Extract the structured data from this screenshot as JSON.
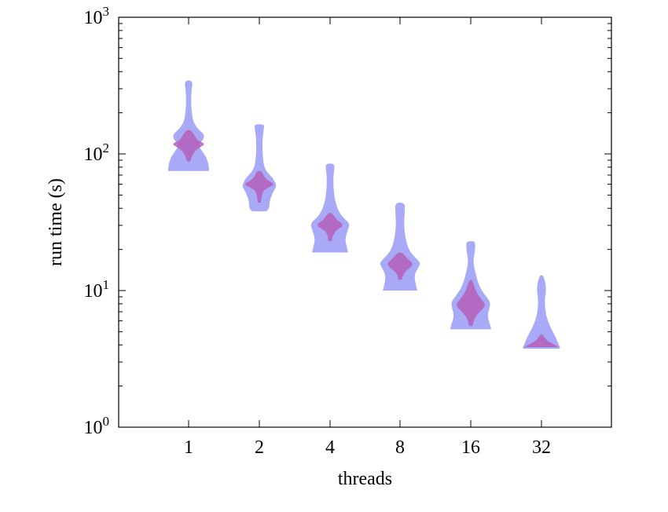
{
  "chart_data": {
    "type": "violin",
    "xlabel": "threads",
    "ylabel": "run time (s)",
    "yscale": "log",
    "ylim": [
      1,
      1000
    ],
    "categories": [
      "1",
      "2",
      "4",
      "8",
      "16",
      "32"
    ],
    "y_ticks": [
      {
        "base": "10",
        "exp": "0",
        "value": 1
      },
      {
        "base": "10",
        "exp": "1",
        "value": 10
      },
      {
        "base": "10",
        "exp": "2",
        "value": 100
      },
      {
        "base": "10",
        "exp": "3",
        "value": 1000
      }
    ],
    "colors": {
      "outer": "#a9aaf7",
      "inner": "#b45fb8",
      "axis": "#000000"
    },
    "violins": [
      {
        "category": "1",
        "outer": {
          "min": 75,
          "max": 345,
          "profile": [
            [
              75,
              26
            ],
            [
              80,
              26
            ],
            [
              90,
              24
            ],
            [
              100,
              20
            ],
            [
              115,
              12
            ],
            [
              135,
              22
            ],
            [
              150,
              13
            ],
            [
              170,
              6
            ],
            [
              200,
              4
            ],
            [
              250,
              3
            ],
            [
              300,
              4
            ],
            [
              330,
              5
            ],
            [
              345,
              3
            ]
          ]
        },
        "inner": {
          "min": 88,
          "max": 150,
          "profile": [
            [
              88,
              2
            ],
            [
              100,
              5
            ],
            [
              110,
              12
            ],
            [
              118,
              22
            ],
            [
              125,
              12
            ],
            [
              135,
              8
            ],
            [
              150,
              3
            ]
          ]
        }
      },
      {
        "category": "2",
        "outer": {
          "min": 38,
          "max": 165,
          "profile": [
            [
              38,
              9
            ],
            [
              40,
              13
            ],
            [
              45,
              13
            ],
            [
              52,
              17
            ],
            [
              58,
              22
            ],
            [
              62,
              20
            ],
            [
              67,
              17
            ],
            [
              72,
              11
            ],
            [
              80,
              6
            ],
            [
              100,
              4
            ],
            [
              130,
              4
            ],
            [
              155,
              6
            ],
            [
              165,
              6
            ]
          ]
        },
        "inner": {
          "min": 44,
          "max": 75,
          "profile": [
            [
              44,
              2
            ],
            [
              50,
              3
            ],
            [
              55,
              6
            ],
            [
              60,
              21
            ],
            [
              64,
              10
            ],
            [
              70,
              5
            ],
            [
              75,
              3
            ]
          ]
        }
      },
      {
        "category": "4",
        "outer": {
          "min": 19,
          "max": 85,
          "profile": [
            [
              19,
              23
            ],
            [
              21,
              21
            ],
            [
              24,
              19
            ],
            [
              28,
              23
            ],
            [
              31,
              25
            ],
            [
              34,
              17
            ],
            [
              37,
              12
            ],
            [
              42,
              8
            ],
            [
              50,
              5
            ],
            [
              65,
              4
            ],
            [
              75,
              5
            ],
            [
              85,
              6
            ]
          ]
        },
        "inner": {
          "min": 23,
          "max": 37,
          "profile": [
            [
              23,
              2
            ],
            [
              27,
              4
            ],
            [
              30,
              19
            ],
            [
              33,
              8
            ],
            [
              37,
              3
            ]
          ]
        }
      },
      {
        "category": "8",
        "outer": {
          "min": 10,
          "max": 44,
          "profile": [
            [
              10,
              22
            ],
            [
              11,
              20
            ],
            [
              13,
              18
            ],
            [
              15,
              24
            ],
            [
              16,
              26
            ],
            [
              18,
              17
            ],
            [
              20,
              11
            ],
            [
              24,
              7
            ],
            [
              30,
              5
            ],
            [
              38,
              6
            ],
            [
              44,
              6
            ]
          ]
        },
        "inner": {
          "min": 12,
          "max": 19,
          "profile": [
            [
              12,
              2
            ],
            [
              13.5,
              4
            ],
            [
              15.5,
              18
            ],
            [
              17,
              10
            ],
            [
              19,
              3
            ]
          ]
        }
      },
      {
        "category": "16",
        "outer": {
          "min": 5.2,
          "max": 23,
          "profile": [
            [
              5.2,
              26
            ],
            [
              5.6,
              25
            ],
            [
              6.5,
              21
            ],
            [
              7.5,
              24
            ],
            [
              8.2,
              25
            ],
            [
              9,
              20
            ],
            [
              10,
              14
            ],
            [
              11.5,
              9
            ],
            [
              13.5,
              6
            ],
            [
              16,
              3
            ],
            [
              19,
              5
            ],
            [
              22,
              6
            ],
            [
              23,
              4
            ]
          ]
        },
        "inner": {
          "min": 5.5,
          "max": 12,
          "profile": [
            [
              5.5,
              2
            ],
            [
              6.2,
              4
            ],
            [
              7,
              11
            ],
            [
              7.8,
              20
            ],
            [
              8.8,
              12
            ],
            [
              10,
              6
            ],
            [
              12,
              2
            ]
          ]
        }
      },
      {
        "category": "32",
        "outer": {
          "min": 3.75,
          "max": 13,
          "profile": [
            [
              3.75,
              23
            ],
            [
              3.85,
              24
            ],
            [
              4.0,
              22
            ],
            [
              4.3,
              20
            ],
            [
              4.7,
              17
            ],
            [
              5.3,
              12
            ],
            [
              6,
              8
            ],
            [
              7,
              5
            ],
            [
              8.5,
              4
            ],
            [
              10,
              6
            ],
            [
              11.5,
              5
            ],
            [
              13,
              2
            ]
          ]
        },
        "inner": {
          "min": 3.85,
          "max": 4.8,
          "profile": [
            [
              3.85,
              22
            ],
            [
              4.0,
              17
            ],
            [
              4.3,
              7
            ],
            [
              4.6,
              3
            ],
            [
              4.8,
              1
            ]
          ]
        }
      }
    ]
  }
}
